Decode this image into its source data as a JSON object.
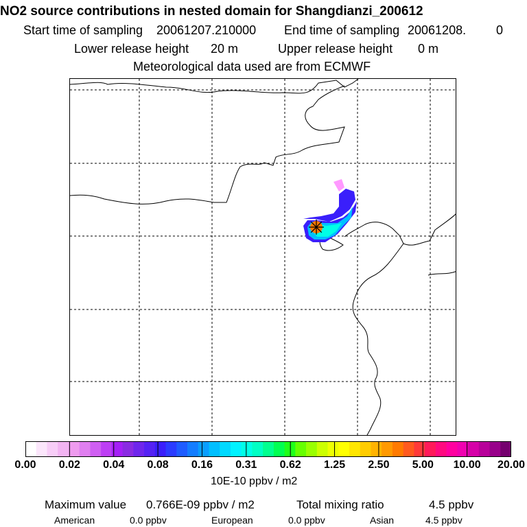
{
  "header": {
    "title": "NO2 source contributions in nested domain for Shangdianzi_200612",
    "start_label": "Start time of sampling",
    "start_value": "20061207.210000",
    "end_label": "End time of sampling",
    "end_value": "20061208.",
    "end_extra": "0",
    "lower_label": "Lower release height",
    "lower_value": "20 m",
    "upper_label": "Upper release height",
    "upper_value": "0 m",
    "met_note": "Meteorological data used are from ECMWF"
  },
  "chart_data": {
    "type": "heatmap",
    "title": "NO2 source contributions in nested domain for Shangdianzi_200612",
    "colorbar_unit": "10E-10 ppbv / m2",
    "colorbar_ticks": [
      "0.00",
      "0.02",
      "0.04",
      "0.08",
      "0.16",
      "0.31",
      "0.62",
      "1.25",
      "2.50",
      "5.00",
      "10.00",
      "20.00"
    ],
    "colorbar_colors": [
      "#ffffff",
      "#fbe6fb",
      "#f7cdf7",
      "#f2b4f2",
      "#ee9bee",
      "#e07ff0",
      "#cf5ff2",
      "#bd3ff4",
      "#a51ff6",
      "#8a2be2",
      "#6f26ec",
      "#5522f4",
      "#3a1ffb",
      "#2b3cff",
      "#1f5cff",
      "#147dff",
      "#0a9eff",
      "#00bfff",
      "#00d9ff",
      "#00f2ff",
      "#00ffe6",
      "#00ffc4",
      "#00ff8f",
      "#00ff52",
      "#1fff1a",
      "#66ff00",
      "#99ff00",
      "#ccff00",
      "#eeff00",
      "#ffff00",
      "#ffe600",
      "#ffcc00",
      "#ffb300",
      "#ff9900",
      "#ff7a00",
      "#ff5a1f",
      "#ff3a3a",
      "#ff1a5a",
      "#ff0a80",
      "#ff00a0",
      "#f000b0",
      "#d600a8",
      "#b8009a",
      "#98008a",
      "#75006f"
    ],
    "colors": {
      "plume_outer": "#ff99ff",
      "plume_mid": "#3a1ffb",
      "plume_inner": "#00bfff",
      "plume_core": "#00ffe6",
      "source_hot": "#ff7a00",
      "source_marker": "#000000",
      "coast_line": "#000000",
      "grid_line": "#000000"
    }
  },
  "footer": {
    "max_label": "Maximum value",
    "max_value": "0.766E-09 ppbv / m2",
    "total_label": "Total mixing ratio",
    "total_value": "4.5 ppbv",
    "regions": [
      {
        "name": "American",
        "value": "0.0 ppbv"
      },
      {
        "name": "European",
        "value": "0.0 ppbv"
      },
      {
        "name": "Asian",
        "value": "4.5 ppbv"
      }
    ]
  }
}
